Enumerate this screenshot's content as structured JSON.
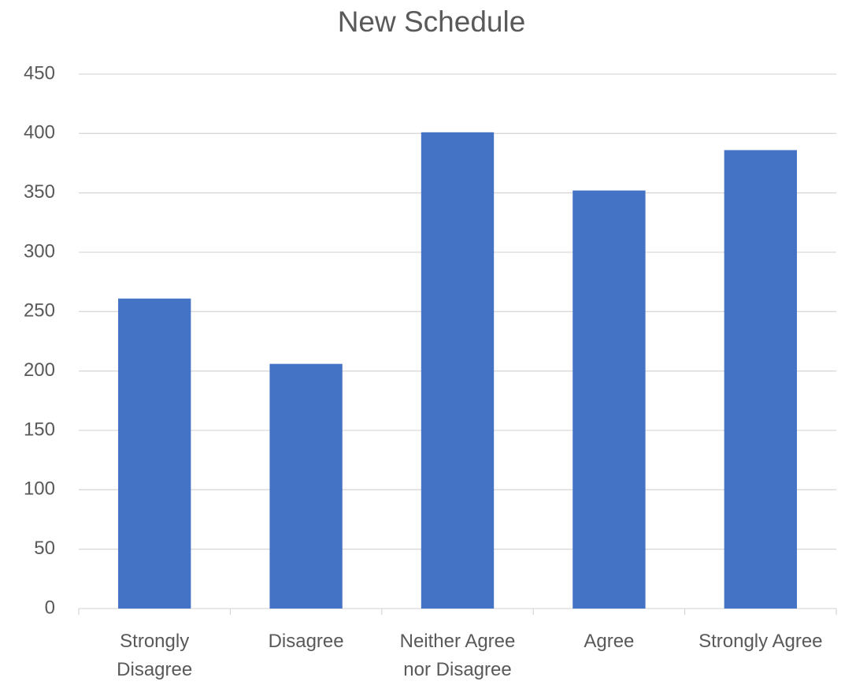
{
  "chart_data": {
    "type": "bar",
    "title": "New Schedule",
    "categories": [
      "Strongly Disagree",
      "Disagree",
      "Neither Agree nor Disagree",
      "Agree",
      "Strongly Agree"
    ],
    "values": [
      261,
      206,
      401,
      352,
      386
    ],
    "color": "#4472c4",
    "ylim": [
      0,
      450
    ],
    "yticks": [
      0,
      50,
      100,
      150,
      200,
      250,
      300,
      350,
      400,
      450
    ],
    "grid": true
  }
}
